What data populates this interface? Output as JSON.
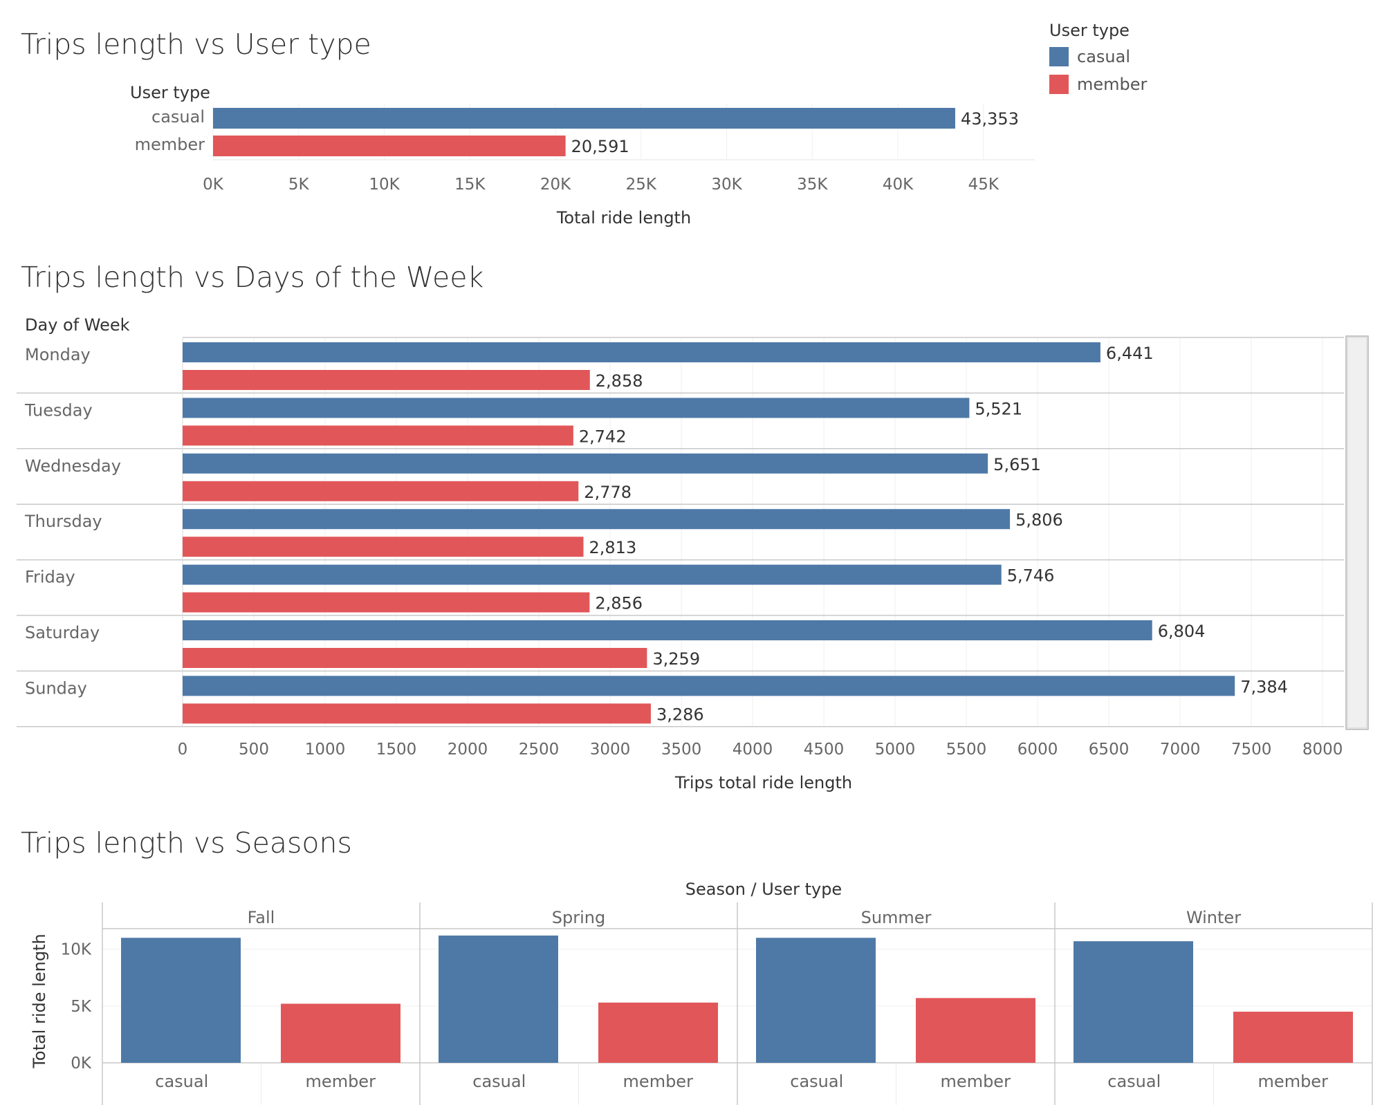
{
  "colors": {
    "casual": "#4e79a7",
    "member": "#e15759"
  },
  "legend": {
    "title": "User type",
    "items": [
      {
        "label": "casual",
        "color": "#4e79a7"
      },
      {
        "label": "member",
        "color": "#e15759"
      }
    ]
  },
  "chart_data": [
    {
      "type": "bar",
      "title": "Trips length vs User type",
      "orientation": "horizontal",
      "row_header": "User type",
      "categories": [
        "casual",
        "member"
      ],
      "values": [
        43353,
        20591
      ],
      "value_labels": [
        "43,353",
        "20,591"
      ],
      "xlabel": "Total ride length",
      "xlim": [
        0,
        48000
      ],
      "xticks": [
        0,
        5000,
        10000,
        15000,
        20000,
        25000,
        30000,
        35000,
        40000,
        45000
      ],
      "xtick_labels": [
        "0K",
        "5K",
        "10K",
        "15K",
        "20K",
        "25K",
        "30K",
        "35K",
        "40K",
        "45K"
      ]
    },
    {
      "type": "bar",
      "title": "Trips length vs Days of the Week",
      "orientation": "horizontal",
      "row_header": "Day of Week",
      "categories": [
        "Monday",
        "Tuesday",
        "Wednesday",
        "Thursday",
        "Friday",
        "Saturday",
        "Sunday"
      ],
      "series": [
        {
          "name": "casual",
          "values": [
            6441,
            5521,
            5651,
            5806,
            5746,
            6804,
            7384
          ],
          "value_labels": [
            "6,441",
            "5,521",
            "5,651",
            "5,806",
            "5,746",
            "6,804",
            "7,384"
          ]
        },
        {
          "name": "member",
          "values": [
            2858,
            2742,
            2778,
            2813,
            2856,
            3259,
            3286
          ],
          "value_labels": [
            "2,858",
            "2,742",
            "2,778",
            "2,813",
            "2,856",
            "3,259",
            "3,286"
          ]
        }
      ],
      "xlabel": "Trips total ride length",
      "xlim": [
        0,
        8150
      ],
      "xticks": [
        0,
        500,
        1000,
        1500,
        2000,
        2500,
        3000,
        3500,
        4000,
        4500,
        5000,
        5500,
        6000,
        6500,
        7000,
        7500,
        8000
      ],
      "xtick_labels": [
        "0",
        "500",
        "1000",
        "1500",
        "2000",
        "2500",
        "3000",
        "3500",
        "4000",
        "4500",
        "5000",
        "5500",
        "6000",
        "6500",
        "7000",
        "7500",
        "8000"
      ]
    },
    {
      "type": "bar",
      "title": "Trips length vs Seasons",
      "orientation": "vertical",
      "header": "Season  /  User type",
      "panels": [
        {
          "name": "Fall",
          "categories": [
            "casual",
            "member"
          ],
          "values": [
            11000,
            5200
          ]
        },
        {
          "name": "Spring",
          "categories": [
            "casual",
            "member"
          ],
          "values": [
            11200,
            5300
          ]
        },
        {
          "name": "Summer",
          "categories": [
            "casual",
            "member"
          ],
          "values": [
            11000,
            5700
          ]
        },
        {
          "name": "Winter",
          "categories": [
            "casual",
            "member"
          ],
          "values": [
            10700,
            4500
          ]
        }
      ],
      "ylabel": "Total ride length",
      "ylim": [
        0,
        11500
      ],
      "yticks": [
        0,
        5000,
        10000
      ],
      "ytick_labels": [
        "0K",
        "5K",
        "10K"
      ]
    }
  ]
}
